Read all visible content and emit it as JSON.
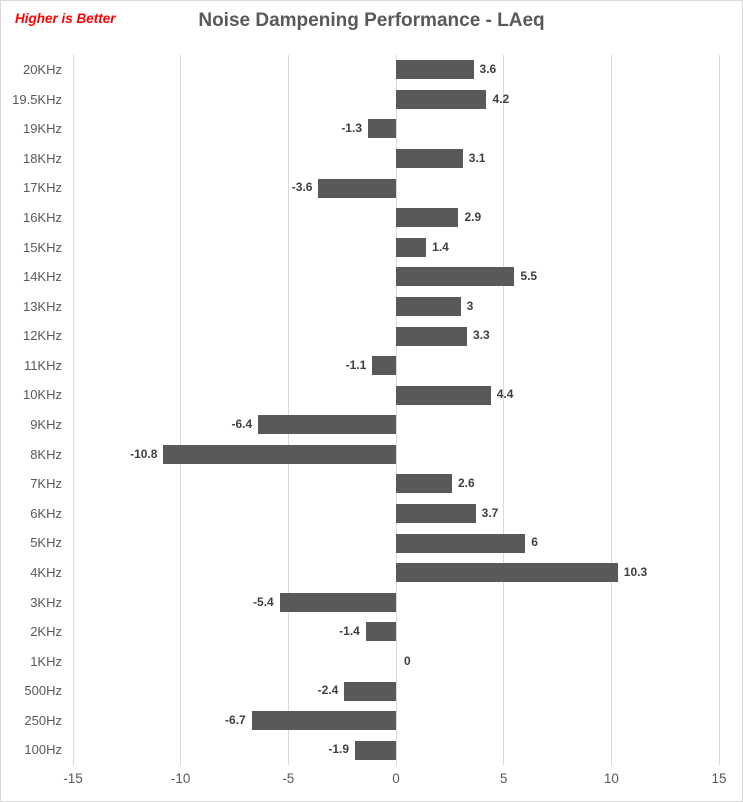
{
  "header": {
    "note": "Higher is Better",
    "title": "Noise Dampening Performance - LAeq"
  },
  "chart_data": {
    "type": "bar",
    "orientation": "horizontal",
    "title": "Noise Dampening Performance - LAeq",
    "annotation": "Higher is Better",
    "categories": [
      "20KHz",
      "19.5KHz",
      "19KHz",
      "18KHz",
      "17KHz",
      "16KHz",
      "15KHz",
      "14KHz",
      "13KHz",
      "12KHz",
      "11KHz",
      "10KHz",
      "9KHz",
      "8KHz",
      "7KHz",
      "6KHz",
      "5KHz",
      "4KHz",
      "3KHz",
      "2KHz",
      "1KHz",
      "500Hz",
      "250Hz",
      "100Hz"
    ],
    "values": [
      3.6,
      4.2,
      -1.3,
      3.1,
      -3.6,
      2.9,
      1.4,
      5.5,
      3,
      3.3,
      -1.1,
      4.4,
      -6.4,
      -10.8,
      2.6,
      3.7,
      6,
      10.3,
      -5.4,
      -1.4,
      0,
      -2.4,
      -6.7,
      -1.9
    ],
    "xlabel": "",
    "ylabel": "",
    "xlim": [
      -15,
      15
    ],
    "xticks": [
      -15,
      -10,
      -5,
      0,
      5,
      10,
      15
    ],
    "grid": true,
    "legend": false,
    "value_labels": true,
    "colors": {
      "bar": "#595959",
      "gridline": "#d9d9d9",
      "title": "#595959",
      "annotation": "#ff0000",
      "value_label": "#3f3f3f",
      "category_label": "#595959",
      "axis_label": "#595959"
    }
  }
}
